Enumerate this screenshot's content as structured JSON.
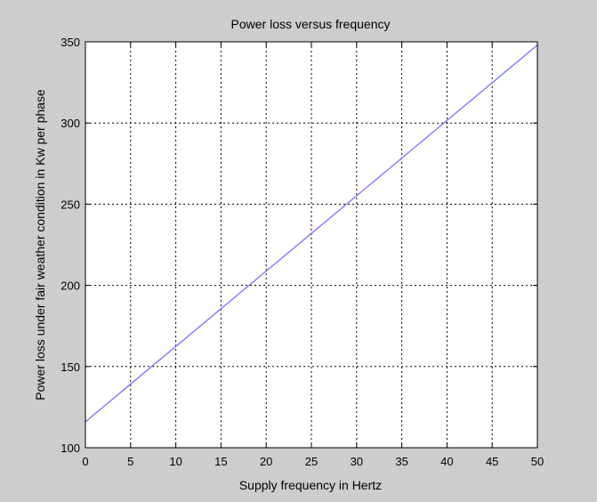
{
  "chart_data": {
    "type": "line",
    "title": "Power loss versus frequency",
    "xlabel": "Supply frequency in Hertz",
    "ylabel": "Power loss under fair weather condition in Kw per phase",
    "xlim": [
      0,
      50
    ],
    "ylim": [
      100,
      350
    ],
    "xticks": [
      0,
      5,
      10,
      15,
      20,
      25,
      30,
      35,
      40,
      45,
      50
    ],
    "yticks": [
      100,
      150,
      200,
      250,
      300,
      350
    ],
    "grid": true,
    "series": [
      {
        "color": "#6f74ff",
        "x": [
          0,
          50
        ],
        "y": [
          116,
          348
        ]
      }
    ]
  },
  "colors": {
    "figure_background": "#cdcdcd",
    "axes_background": "#ffffff",
    "grid": "#000000",
    "line": "#6f74ff"
  }
}
